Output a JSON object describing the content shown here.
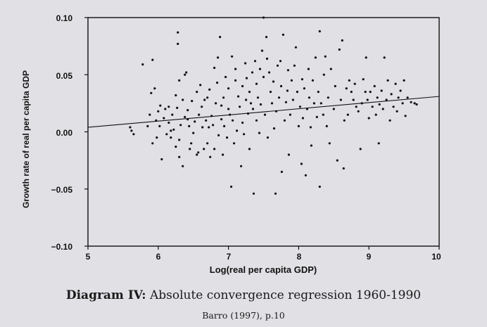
{
  "chart_data": {
    "type": "scatter",
    "title": "",
    "xlabel": "Log(real per capita GDP)",
    "ylabel": "Growth rate of real per capita GDP",
    "xlim": [
      5,
      10
    ],
    "ylim": [
      -0.1,
      0.1
    ],
    "x_ticks": [
      "5",
      "6",
      "7",
      "8",
      "9",
      "10"
    ],
    "y_ticks": [
      "0.10",
      "0.05",
      "0.00",
      "−0.05",
      "−0.10"
    ],
    "grid": false,
    "legend": "none",
    "fit_line": {
      "x": [
        5,
        10
      ],
      "y": [
        0.004,
        0.031
      ]
    },
    "series": [
      {
        "points": [
          [
            5.6,
            0.004
          ],
          [
            5.62,
            0.001
          ],
          [
            5.65,
            -0.002
          ],
          [
            5.78,
            0.059
          ],
          [
            5.85,
            0.005
          ],
          [
            5.88,
            0.015
          ],
          [
            5.9,
            0.034
          ],
          [
            5.92,
            0.063
          ],
          [
            5.92,
            -0.01
          ],
          [
            5.95,
            0.038
          ],
          [
            5.97,
            0.01
          ],
          [
            5.98,
            -0.005
          ],
          [
            6.0,
            0.018
          ],
          [
            6.02,
            0.005
          ],
          [
            6.03,
            0.023
          ],
          [
            6.05,
            -0.024
          ],
          [
            6.08,
            0.012
          ],
          [
            6.1,
            0.02
          ],
          [
            6.12,
            -0.002
          ],
          [
            6.15,
            0.008
          ],
          [
            6.15,
            0.022
          ],
          [
            6.18,
            -0.005
          ],
          [
            6.18,
            0.001
          ],
          [
            6.2,
            0.015
          ],
          [
            6.22,
            0.002
          ],
          [
            6.25,
            -0.013
          ],
          [
            6.25,
            0.032
          ],
          [
            6.27,
            0.021
          ],
          [
            6.28,
            0.087
          ],
          [
            6.28,
            0.077
          ],
          [
            6.3,
            -0.022
          ],
          [
            6.3,
            0.045
          ],
          [
            6.3,
            -0.007
          ],
          [
            6.32,
            0.006
          ],
          [
            6.35,
            0.028
          ],
          [
            6.35,
            -0.03
          ],
          [
            6.38,
            0.013
          ],
          [
            6.38,
            0.05
          ],
          [
            6.4,
            0.052
          ],
          [
            6.42,
            0.019
          ],
          [
            6.42,
            0.011
          ],
          [
            6.44,
            0.005
          ],
          [
            6.45,
            -0.015
          ],
          [
            6.47,
            -0.01
          ],
          [
            6.48,
            0.027
          ],
          [
            6.5,
            -0.001
          ],
          [
            6.52,
            0.009
          ],
          [
            6.55,
            0.035
          ],
          [
            6.55,
            -0.02
          ],
          [
            6.57,
            -0.018
          ],
          [
            6.58,
            0.015
          ],
          [
            6.6,
            0.041
          ],
          [
            6.62,
            0.022
          ],
          [
            6.63,
            0.004
          ],
          [
            6.65,
            -0.015
          ],
          [
            6.66,
            0.028
          ],
          [
            6.68,
            0.01
          ],
          [
            6.7,
            0.03
          ],
          [
            6.7,
            -0.01
          ],
          [
            6.72,
            0.004
          ],
          [
            6.73,
            0.037
          ],
          [
            6.74,
            -0.022
          ],
          [
            6.76,
            0.014
          ],
          [
            6.78,
            0.006
          ],
          [
            6.8,
            -0.015
          ],
          [
            6.8,
            0.056
          ],
          [
            6.82,
            0.025
          ],
          [
            6.84,
            0.043
          ],
          [
            6.85,
            0.065
          ],
          [
            6.86,
            -0.003
          ],
          [
            6.88,
            0.083
          ],
          [
            6.9,
            0.023
          ],
          [
            6.9,
            0.011
          ],
          [
            6.92,
            -0.02
          ],
          [
            6.93,
            0.03
          ],
          [
            6.94,
            0.005
          ],
          [
            6.96,
            0.048
          ],
          [
            6.98,
            -0.005
          ],
          [
            7.0,
            0.038
          ],
          [
            7.0,
            0.02
          ],
          [
            7.02,
            0.015
          ],
          [
            7.04,
            -0.048
          ],
          [
            7.05,
            0.066
          ],
          [
            7.06,
            0.01
          ],
          [
            7.08,
            -0.01
          ],
          [
            7.1,
            0.055
          ],
          [
            7.1,
            0.045
          ],
          [
            7.12,
            0.001
          ],
          [
            7.14,
            0.031
          ],
          [
            7.16,
            0.022
          ],
          [
            7.18,
            -0.03
          ],
          [
            7.2,
            0.04
          ],
          [
            7.2,
            0.008
          ],
          [
            7.22,
            -0.002
          ],
          [
            7.24,
            0.06
          ],
          [
            7.25,
            0.028
          ],
          [
            7.26,
            0.047
          ],
          [
            7.28,
            0.016
          ],
          [
            7.3,
            0.035
          ],
          [
            7.3,
            -0.015
          ],
          [
            7.32,
            0.025
          ],
          [
            7.34,
            0.052
          ],
          [
            7.35,
            0.02
          ],
          [
            7.36,
            -0.054
          ],
          [
            7.38,
            0.062
          ],
          [
            7.4,
            0.042
          ],
          [
            7.4,
            0.01
          ],
          [
            7.42,
            0.03
          ],
          [
            7.44,
            -0.001
          ],
          [
            7.45,
            0.055
          ],
          [
            7.46,
            0.024
          ],
          [
            7.48,
            0.071
          ],
          [
            7.5,
            0.1
          ],
          [
            7.5,
            0.048
          ],
          [
            7.52,
            0.015
          ],
          [
            7.54,
            0.083
          ],
          [
            7.55,
            0.064
          ],
          [
            7.56,
            -0.005
          ],
          [
            7.58,
            0.052
          ],
          [
            7.6,
            0.035
          ],
          [
            7.62,
            0.025
          ],
          [
            7.64,
            0.044
          ],
          [
            7.65,
            0.003
          ],
          [
            7.67,
            -0.054
          ],
          [
            7.68,
            0.018
          ],
          [
            7.7,
            0.058
          ],
          [
            7.72,
            0.03
          ],
          [
            7.74,
            0.062
          ],
          [
            7.75,
            0.04
          ],
          [
            7.76,
            -0.035
          ],
          [
            7.78,
            0.085
          ],
          [
            7.8,
            0.01
          ],
          [
            7.82,
            0.026
          ],
          [
            7.84,
            0.036
          ],
          [
            7.85,
            0.054
          ],
          [
            7.86,
            -0.02
          ],
          [
            7.88,
            0.015
          ],
          [
            7.9,
            0.045
          ],
          [
            7.92,
            0.028
          ],
          [
            7.94,
            0.058
          ],
          [
            7.96,
            0.074
          ],
          [
            7.98,
            0.035
          ],
          [
            8.0,
            0.005
          ],
          [
            8.02,
            0.022
          ],
          [
            8.04,
            -0.028
          ],
          [
            8.05,
            0.046
          ],
          [
            8.06,
            0.012
          ],
          [
            8.08,
            0.038
          ],
          [
            8.1,
            -0.038
          ],
          [
            8.12,
            0.02
          ],
          [
            8.14,
            0.055
          ],
          [
            8.15,
            0.03
          ],
          [
            8.17,
            0.004
          ],
          [
            8.18,
            -0.012
          ],
          [
            8.2,
            0.045
          ],
          [
            8.22,
            0.025
          ],
          [
            8.24,
            0.065
          ],
          [
            8.26,
            0.013
          ],
          [
            8.28,
            0.035
          ],
          [
            8.3,
            0.088
          ],
          [
            8.3,
            -0.048
          ],
          [
            8.32,
            0.025
          ],
          [
            8.35,
            0.015
          ],
          [
            8.36,
            0.05
          ],
          [
            8.38,
            0.066
          ],
          [
            8.4,
            0.005
          ],
          [
            8.42,
            0.03
          ],
          [
            8.44,
            -0.01
          ],
          [
            8.46,
            0.055
          ],
          [
            8.5,
            0.02
          ],
          [
            8.52,
            0.04
          ],
          [
            8.55,
            -0.025
          ],
          [
            8.58,
            0.072
          ],
          [
            8.6,
            0.028
          ],
          [
            8.62,
            0.08
          ],
          [
            8.64,
            -0.032
          ],
          [
            8.65,
            0.01
          ],
          [
            8.68,
            0.038
          ],
          [
            8.7,
            0.015
          ],
          [
            8.72,
            0.045
          ],
          [
            8.75,
            0.035
          ],
          [
            8.78,
            0.028
          ],
          [
            8.8,
            0.042
          ],
          [
            8.82,
            0.022
          ],
          [
            8.85,
            0.018
          ],
          [
            8.88,
            -0.015
          ],
          [
            8.9,
            0.025
          ],
          [
            8.92,
            0.046
          ],
          [
            8.95,
            0.035
          ],
          [
            8.96,
            0.065
          ],
          [
            8.98,
            0.028
          ],
          [
            9.0,
            0.012
          ],
          [
            9.02,
            0.035
          ],
          [
            9.05,
            0.022
          ],
          [
            9.08,
            0.04
          ],
          [
            9.1,
            0.015
          ],
          [
            9.12,
            0.03
          ],
          [
            9.14,
            -0.01
          ],
          [
            9.15,
            0.024
          ],
          [
            9.18,
            0.036
          ],
          [
            9.2,
            0.02
          ],
          [
            9.22,
            0.065
          ],
          [
            9.25,
            0.028
          ],
          [
            9.27,
            0.045
          ],
          [
            9.3,
            0.01
          ],
          [
            9.32,
            0.033
          ],
          [
            9.35,
            0.022
          ],
          [
            9.38,
            0.042
          ],
          [
            9.4,
            0.018
          ],
          [
            9.42,
            0.03
          ],
          [
            9.45,
            0.036
          ],
          [
            9.48,
            0.025
          ],
          [
            9.5,
            0.045
          ],
          [
            9.52,
            0.014
          ],
          [
            9.55,
            0.03
          ],
          [
            9.6,
            0.026
          ],
          [
            9.65,
            0.025
          ],
          [
            9.68,
            0.024
          ]
        ]
      }
    ]
  },
  "caption": {
    "title_bold": "Diagram IV:",
    "title_rest": " Absolute convergence regression 1960-1990",
    "source": "Barro (1997), p.10"
  }
}
